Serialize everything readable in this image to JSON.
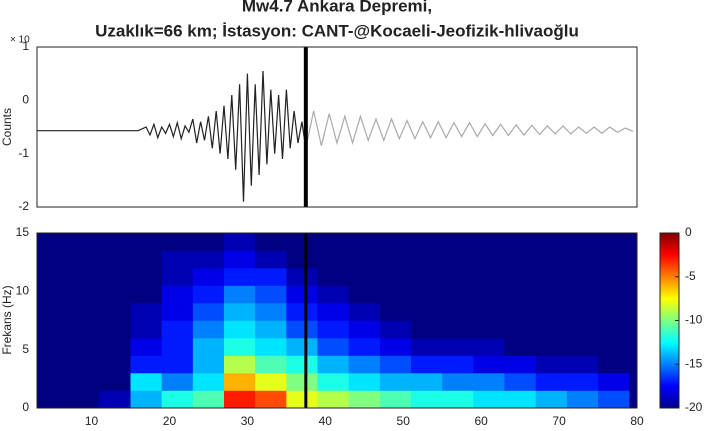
{
  "chart_data": [
    {
      "type": "line",
      "title": "Mw4.7 Ankara Depremi,",
      "subtitle": "Uzaklık=66 km; İstasyon: CANT-@Kocaeli-Jeofizik-hlivaoğlu",
      "y_label": "Counts",
      "y_offset_label": "× 10",
      "xlim": [
        3,
        80
      ],
      "xticks": [
        10,
        20,
        30,
        40,
        50,
        60,
        70,
        80
      ],
      "ylim": [
        -2,
        1
      ],
      "yticks": [
        -2,
        -1,
        0,
        1
      ],
      "vline": 37.5,
      "series": [
        {
          "color": "#222222",
          "x": [
            3,
            16,
            17,
            17.5,
            18,
            18.5,
            19,
            19.5,
            20,
            20.5,
            21,
            21.5,
            22,
            22.5,
            23,
            23.5,
            24,
            24.5,
            25,
            25.5,
            26,
            26.5,
            27,
            27.5,
            28,
            28.5,
            29,
            29.5,
            30,
            30.5,
            31,
            31.5,
            32,
            32.5,
            33,
            33.5,
            34,
            34.5,
            35,
            35.5,
            36,
            36.5,
            37,
            37.5
          ],
          "values": [
            -0.57,
            -0.57,
            -0.5,
            -0.65,
            -0.45,
            -0.7,
            -0.5,
            -0.62,
            -0.45,
            -0.68,
            -0.42,
            -0.72,
            -0.48,
            -0.6,
            -0.35,
            -0.8,
            -0.4,
            -0.75,
            -0.3,
            -0.9,
            -0.2,
            -1.0,
            -0.1,
            -1.1,
            0.1,
            -1.3,
            0.3,
            -1.9,
            0.5,
            -1.6,
            0.3,
            -1.4,
            0.55,
            -1.2,
            0.2,
            -1.0,
            0.1,
            -1.1,
            0.2,
            -0.9,
            -0.2,
            -0.8,
            -0.4,
            -0.9
          ]
        },
        {
          "color": "#aaaaaa",
          "x": [
            37.5,
            38.5,
            39.5,
            40.5,
            41.5,
            42.5,
            43.5,
            44.5,
            45.5,
            46.5,
            47.5,
            48.5,
            49.5,
            50.5,
            51.5,
            52.5,
            53.5,
            54.5,
            55.5,
            56.5,
            57.5,
            58.5,
            59.5,
            60.5,
            61.5,
            62.5,
            63.5,
            64.5,
            65.5,
            66.5,
            67.5,
            68.5,
            69.5,
            70.5,
            71.5,
            72.5,
            73.5,
            74.5,
            75.5,
            76.5,
            77.5,
            78.5,
            79.5
          ],
          "values": [
            -0.9,
            -0.2,
            -0.85,
            -0.25,
            -0.8,
            -0.3,
            -0.8,
            -0.3,
            -0.75,
            -0.35,
            -0.75,
            -0.35,
            -0.72,
            -0.38,
            -0.72,
            -0.4,
            -0.7,
            -0.4,
            -0.7,
            -0.42,
            -0.68,
            -0.42,
            -0.68,
            -0.44,
            -0.66,
            -0.45,
            -0.66,
            -0.46,
            -0.65,
            -0.47,
            -0.64,
            -0.48,
            -0.63,
            -0.48,
            -0.63,
            -0.5,
            -0.62,
            -0.5,
            -0.62,
            -0.5,
            -0.6,
            -0.52,
            -0.58
          ]
        }
      ]
    },
    {
      "type": "heatmap",
      "y_label": "Frekans (Hz)",
      "xlim": [
        3,
        80
      ],
      "xticks": [
        10,
        20,
        30,
        40,
        50,
        60,
        70,
        80
      ],
      "ylim": [
        0,
        15
      ],
      "yticks": [
        0,
        5,
        10,
        15
      ],
      "vline": 37.5,
      "colormap": "jet",
      "clim": [
        -20,
        0
      ],
      "cticks": [
        0,
        -5,
        -10,
        -15,
        -20
      ],
      "x": [
        5,
        9,
        13,
        17,
        21,
        25,
        29,
        33,
        37,
        41,
        45,
        49,
        53,
        57,
        61,
        65,
        69,
        73,
        77
      ],
      "y": [
        0.75,
        2.25,
        3.75,
        5.25,
        6.75,
        8.25,
        9.75,
        11.25,
        12.75,
        14.25
      ],
      "z": [
        [
          -20,
          -20,
          -19,
          -14,
          -12,
          -11,
          -3,
          -4,
          -8,
          -9,
          -10,
          -11,
          -12,
          -12,
          -13,
          -13,
          -14,
          -15,
          -16
        ],
        [
          -20,
          -20,
          -20,
          -13,
          -15,
          -13,
          -6,
          -8,
          -10,
          -12,
          -13,
          -14,
          -14,
          -15,
          -15,
          -16,
          -17,
          -17,
          -18
        ],
        [
          -20,
          -20,
          -20,
          -17,
          -17,
          -14,
          -9,
          -11,
          -12,
          -14,
          -15,
          -16,
          -17,
          -17,
          -18,
          -18,
          -19,
          -19,
          -20
        ],
        [
          -20,
          -20,
          -20,
          -18,
          -17,
          -14,
          -12,
          -13,
          -14,
          -16,
          -17,
          -18,
          -19,
          -19,
          -19,
          -20,
          -20,
          -20,
          -20
        ],
        [
          -20,
          -20,
          -20,
          -19,
          -17,
          -15,
          -13,
          -14,
          -16,
          -17,
          -18,
          -19,
          -20,
          -20,
          -20,
          -20,
          -20,
          -20,
          -20
        ],
        [
          -20,
          -20,
          -20,
          -19,
          -18,
          -16,
          -14,
          -15,
          -17,
          -18,
          -19,
          -20,
          -20,
          -20,
          -20,
          -20,
          -20,
          -20,
          -20
        ],
        [
          -20,
          -20,
          -20,
          -20,
          -18,
          -17,
          -15,
          -16,
          -18,
          -19,
          -20,
          -20,
          -20,
          -20,
          -20,
          -20,
          -20,
          -20,
          -20
        ],
        [
          -20,
          -20,
          -20,
          -20,
          -19,
          -18,
          -17,
          -17,
          -19,
          -20,
          -20,
          -20,
          -20,
          -20,
          -20,
          -20,
          -20,
          -20,
          -20
        ],
        [
          -20,
          -20,
          -20,
          -20,
          -19,
          -19,
          -18,
          -19,
          -20,
          -20,
          -20,
          -20,
          -20,
          -20,
          -20,
          -20,
          -20,
          -20,
          -20
        ],
        [
          -20,
          -20,
          -20,
          -20,
          -20,
          -20,
          -19,
          -20,
          -20,
          -20,
          -20,
          -20,
          -20,
          -20,
          -20,
          -20,
          -20,
          -20,
          -20
        ]
      ]
    }
  ]
}
